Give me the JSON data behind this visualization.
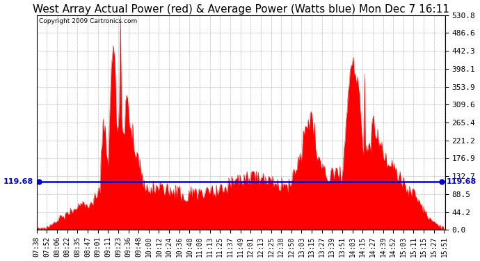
{
  "title": "West Array Actual Power (red) & Average Power (Watts blue) Mon Dec 7 16:11",
  "copyright": "Copyright 2009 Cartronics.com",
  "avg_power": 119.68,
  "y_max": 530.8,
  "y_min": 0.0,
  "y_ticks": [
    0.0,
    44.2,
    88.5,
    132.7,
    176.9,
    221.2,
    265.4,
    309.6,
    353.9,
    398.1,
    442.3,
    486.6,
    530.8
  ],
  "bar_color": "#FF0000",
  "avg_line_color": "#0000CC",
  "background_color": "#FFFFFF",
  "grid_color": "#AAAAAA",
  "title_fontsize": 11,
  "x_labels": [
    "07:38",
    "07:52",
    "08:06",
    "08:22",
    "08:35",
    "08:47",
    "09:01",
    "09:11",
    "09:23",
    "09:36",
    "09:48",
    "10:00",
    "10:12",
    "10:24",
    "10:36",
    "10:48",
    "11:00",
    "11:13",
    "11:25",
    "11:37",
    "11:49",
    "12:01",
    "12:13",
    "12:25",
    "12:38",
    "12:50",
    "13:03",
    "13:15",
    "13:27",
    "13:39",
    "13:51",
    "14:03",
    "14:15",
    "14:27",
    "14:39",
    "14:52",
    "15:03",
    "15:11",
    "15:15",
    "15:27",
    "15:51"
  ]
}
